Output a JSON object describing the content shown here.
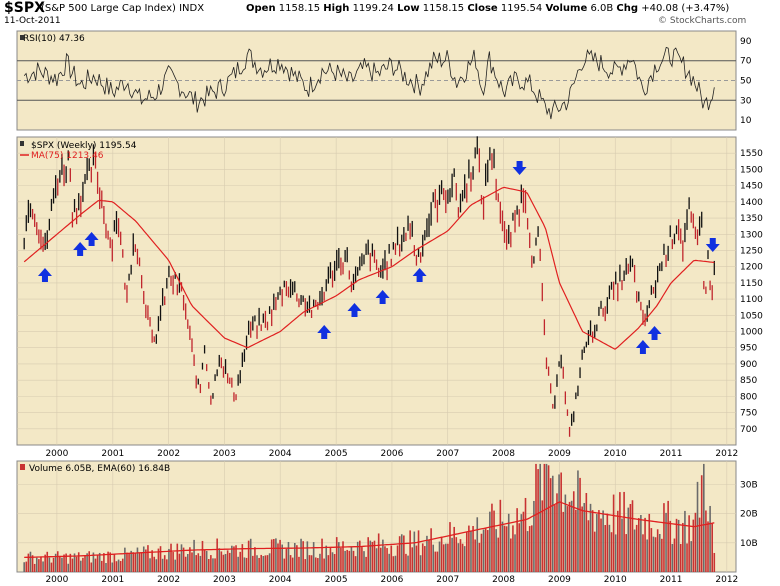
{
  "header": {
    "symbol": "$SPX",
    "description": "(S&P 500 Large Cap Index) INDX",
    "date": "11-Oct-2011",
    "open_label": "Open",
    "open": "1158.15",
    "high_label": "High",
    "high": "1199.24",
    "low_label": "Low",
    "low": "1158.15",
    "close_label": "Close",
    "close": "1195.54",
    "volume_label": "Volume",
    "volume": "6.0B",
    "chg_label": "Chg",
    "chg": "+40.08 (+3.47%)",
    "watermark": "© StockCharts.com"
  },
  "colors": {
    "panel_bg": "#f3e8c6",
    "grid": "#d7cbb0",
    "ma_line": "#e02020",
    "arrow": "#1030e0",
    "price": "#111111",
    "volume_bar_red": "#c83232",
    "volume_bar_gray": "#6a6a6a",
    "rsi_fill": "#6b8f3a"
  },
  "chart_data": [
    {
      "type": "line",
      "title": "RSI(10) 47.36",
      "indicator": "RSI(10)",
      "last_value": 47.36,
      "ylim": [
        0,
        100
      ],
      "y_ticks": [
        10,
        30,
        50,
        70,
        90
      ],
      "reference_lines": [
        30,
        50,
        70
      ],
      "series": [
        {
          "name": "RSI(10)",
          "x": [
            "1999-06-01",
            "1999-09-01",
            "2000-01-01",
            "2000-03-01",
            "2000-06-01",
            "2000-09-01",
            "2001-01-01",
            "2001-04-01",
            "2001-07-01",
            "2001-10-01",
            "2002-01-01",
            "2002-04-01",
            "2002-07-01",
            "2002-10-01",
            "2003-01-01",
            "2003-03-01",
            "2003-06-01",
            "2003-09-01",
            "2004-01-01",
            "2004-04-01",
            "2004-07-01",
            "2004-10-01",
            "2005-01-01",
            "2005-04-01",
            "2005-07-01",
            "2005-10-01",
            "2006-01-01",
            "2006-04-01",
            "2006-07-01",
            "2006-10-01",
            "2007-01-01",
            "2007-03-01",
            "2007-07-01",
            "2007-08-15",
            "2007-10-01",
            "2008-01-01",
            "2008-04-01",
            "2008-07-01",
            "2008-10-01",
            "2008-11-20",
            "2009-03-01",
            "2009-06-01",
            "2009-09-01",
            "2010-01-01",
            "2010-04-20",
            "2010-07-01",
            "2010-10-01",
            "2011-01-01",
            "2011-04-01",
            "2011-06-01",
            "2011-08-10",
            "2011-09-20",
            "2011-10-11"
          ],
          "y": [
            55,
            60,
            52,
            68,
            45,
            55,
            38,
            50,
            30,
            35,
            55,
            42,
            28,
            36,
            45,
            55,
            76,
            62,
            70,
            55,
            42,
            60,
            58,
            48,
            62,
            56,
            66,
            54,
            44,
            70,
            72,
            48,
            74,
            40,
            72,
            38,
            52,
            45,
            22,
            18,
            30,
            72,
            70,
            58,
            75,
            40,
            68,
            76,
            64,
            50,
            25,
            35,
            47
          ]
        }
      ]
    },
    {
      "type": "line",
      "title": "$SPX (Weekly) 1195.54",
      "ylim": [
        650,
        1600
      ],
      "y_ticks": [
        700,
        750,
        800,
        850,
        900,
        950,
        1000,
        1050,
        1100,
        1150,
        1200,
        1250,
        1300,
        1350,
        1400,
        1450,
        1500,
        1550
      ],
      "x_ticks": [
        "2000",
        "2001",
        "2002",
        "2003",
        "2004",
        "2005",
        "2006",
        "2007",
        "2008",
        "2009",
        "2010",
        "2011",
        "2012"
      ],
      "series": [
        {
          "name": "$SPX (Weekly) 1195.54",
          "x": [
            "1999-06-01",
            "1999-07-15",
            "1999-10-15",
            "1999-12-31",
            "2000-03-24",
            "2000-04-14",
            "2000-09-01",
            "2000-12-20",
            "2001-01-31",
            "2001-04-04",
            "2001-05-21",
            "2001-09-21",
            "2002-01-04",
            "2002-04-01",
            "2002-07-23",
            "2002-08-22",
            "2002-10-09",
            "2002-11-27",
            "2003-03-11",
            "2003-06-17",
            "2003-10-01",
            "2004-02-11",
            "2004-08-12",
            "2004-12-31",
            "2005-03-07",
            "2005-04-20",
            "2005-08-01",
            "2005-10-12",
            "2006-05-05",
            "2006-06-13",
            "2006-10-01",
            "2007-02-20",
            "2007-03-13",
            "2007-07-16",
            "2007-08-15",
            "2007-10-09",
            "2008-01-22",
            "2008-05-19",
            "2008-07-15",
            "2008-08-15",
            "2008-10-10",
            "2008-11-20",
            "2009-01-06",
            "2009-03-09",
            "2009-06-12",
            "2009-10-01",
            "2010-01-19",
            "2010-04-23",
            "2010-07-02",
            "2010-11-05",
            "2011-02-18",
            "2011-03-16",
            "2011-05-02",
            "2011-06-16",
            "2011-07-22",
            "2011-08-08",
            "2011-09-01",
            "2011-10-03",
            "2011-10-11"
          ],
          "y": [
            1300,
            1410,
            1250,
            1470,
            1530,
            1360,
            1520,
            1260,
            1370,
            1100,
            1310,
            950,
            1170,
            1120,
            800,
            960,
            780,
            930,
            800,
            1010,
            1030,
            1150,
            1060,
            1210,
            1230,
            1140,
            1250,
            1180,
            1330,
            1220,
            1390,
            1460,
            1380,
            1560,
            1380,
            1570,
            1260,
            1440,
            1200,
            1300,
            900,
            750,
            950,
            676,
            950,
            1060,
            1150,
            1200,
            1020,
            1220,
            1340,
            1260,
            1370,
            1260,
            1350,
            1100,
            1220,
            1080,
            1196
          ]
        },
        {
          "name": "MA(75) 1213.46",
          "x": [
            "1999-06-01",
            "2000-06-01",
            "2000-10-01",
            "2001-01-01",
            "2001-06-01",
            "2002-01-01",
            "2002-06-01",
            "2003-01-01",
            "2003-06-01",
            "2004-01-01",
            "2004-06-01",
            "2005-01-01",
            "2005-06-01",
            "2006-01-01",
            "2006-06-01",
            "2007-01-01",
            "2007-06-01",
            "2008-01-01",
            "2008-06-01",
            "2008-10-01",
            "2009-01-01",
            "2009-06-01",
            "2010-01-01",
            "2010-06-01",
            "2010-10-01",
            "2011-01-01",
            "2011-06-01",
            "2011-10-11"
          ],
          "y": [
            1215,
            1360,
            1405,
            1400,
            1340,
            1220,
            1080,
            980,
            950,
            1000,
            1060,
            1110,
            1160,
            1200,
            1250,
            1310,
            1390,
            1445,
            1430,
            1320,
            1150,
            1000,
            945,
            1010,
            1080,
            1150,
            1220,
            1213
          ]
        }
      ],
      "arrows": {
        "up_dates": [
          "1999-10-15",
          "2000-06-01",
          "2000-08-15",
          "2004-10-15",
          "2005-05-01",
          "2005-11-01",
          "2006-07-01",
          "2010-07-01",
          "2010-09-15"
        ],
        "down_dates": [
          "2008-04-15",
          "2011-10-01"
        ]
      }
    },
    {
      "type": "bar",
      "title": "Volume 6.05B, EMA(60) 16.84B",
      "ylabel": "",
      "y_ticks": [
        "10B",
        "20B",
        "30B"
      ],
      "ylim": [
        0,
        38
      ],
      "x_ticks": [
        "2000",
        "2001",
        "2002",
        "2003",
        "2004",
        "2005",
        "2006",
        "2007",
        "2008",
        "2009",
        "2010",
        "2011",
        "2012"
      ],
      "series": [
        {
          "name": "Volume 6.05B",
          "x": [
            "1999-06-01",
            "2000-06-01",
            "2001-06-01",
            "2002-06-01",
            "2003-06-01",
            "2004-06-01",
            "2005-06-01",
            "2006-06-01",
            "2007-06-01",
            "2008-06-01",
            "2008-10-15",
            "2009-06-01",
            "2010-06-01",
            "2011-06-01",
            "2011-08-10",
            "2011-10-11"
          ],
          "y": [
            5,
            5,
            6,
            8,
            8,
            8,
            9,
            10,
            14,
            20,
            38,
            22,
            18,
            16,
            36,
            6
          ]
        },
        {
          "name": "EMA(60) 16.84B",
          "x": [
            "1999-06-01",
            "2000-06-01",
            "2001-06-01",
            "2002-06-01",
            "2003-06-01",
            "2004-06-01",
            "2005-06-01",
            "2006-06-01",
            "2007-06-01",
            "2008-06-01",
            "2009-01-01",
            "2009-06-01",
            "2010-06-01",
            "2011-06-01",
            "2011-10-11"
          ],
          "y": [
            5,
            5.5,
            6.5,
            7.5,
            8,
            8.2,
            8.7,
            10,
            14,
            18,
            24,
            21,
            18,
            15.5,
            16.84
          ]
        }
      ]
    }
  ]
}
